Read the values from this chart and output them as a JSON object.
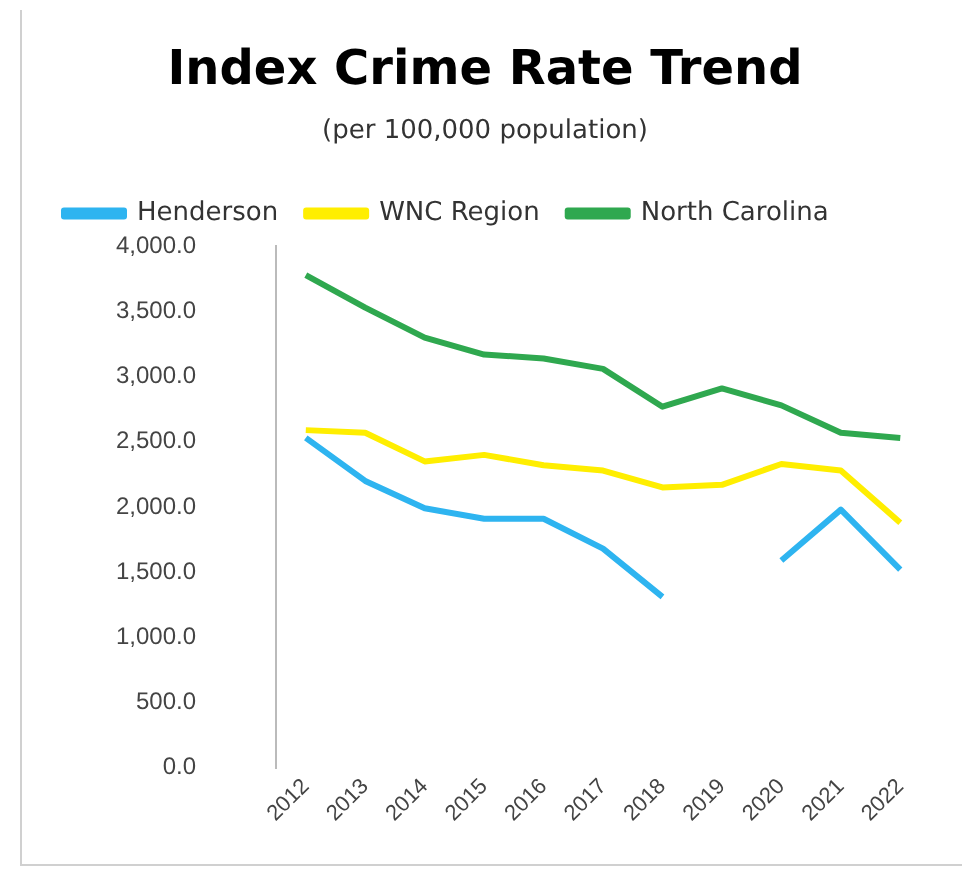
{
  "chart_data": {
    "type": "line",
    "title": "Index Crime Rate Trend",
    "subtitle": "(per 100,000 population)",
    "categories": [
      "2012",
      "2013",
      "2014",
      "2015",
      "2016",
      "2017",
      "2018",
      "2019",
      "2020",
      "2021",
      "2022"
    ],
    "series": [
      {
        "name": "Henderson",
        "color": "#2eb4f0",
        "values": [
          2530,
          2200,
          1990,
          1910,
          1910,
          1680,
          1310,
          null,
          1590,
          1980,
          1520
        ]
      },
      {
        "name": "WNC Region",
        "color": "#ffee00",
        "values": [
          2590,
          2570,
          2350,
          2400,
          2320,
          2280,
          2150,
          2170,
          2330,
          2280,
          1880
        ]
      },
      {
        "name": "North Carolina",
        "color": "#2fa84f",
        "values": [
          3780,
          3530,
          3300,
          3170,
          3140,
          3060,
          2770,
          2910,
          2780,
          2570,
          2530
        ]
      }
    ],
    "ylim": [
      0,
      4000
    ],
    "yticks": [
      {
        "value": 0,
        "label": "0.0"
      },
      {
        "value": 500,
        "label": "500.0"
      },
      {
        "value": 1000,
        "label": "1,000.0"
      },
      {
        "value": 1500,
        "label": "1,500.0"
      },
      {
        "value": 2000,
        "label": "2,000.0"
      },
      {
        "value": 2500,
        "label": "2,500.0"
      },
      {
        "value": 3000,
        "label": "3,000.0"
      },
      {
        "value": 3500,
        "label": "3,500.0"
      },
      {
        "value": 4000,
        "label": "4,000.0"
      }
    ],
    "grid": false,
    "legend": "top",
    "marker": "none",
    "line_style": "solid"
  }
}
